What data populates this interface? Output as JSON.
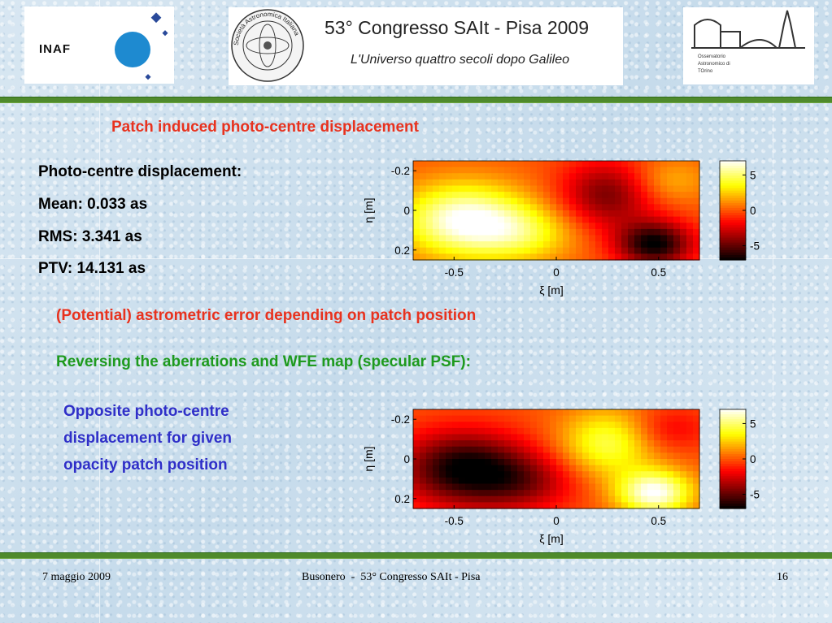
{
  "header": {
    "logos": {
      "inaf": {
        "text": "INAF"
      },
      "sait_seal": {
        "text": "Società Astronomica Italiana · 1871 Società degli Spettroscopisti"
      },
      "torino": {
        "line1": "Osservatorio",
        "line2": "Astronomico di",
        "line3": "TOrino"
      }
    },
    "congress_title": "53° Congresso SAIt - Pisa 2009",
    "congress_subtitle": "L'Universo quattro secoli dopo Galileo"
  },
  "section_title": "Patch induced photo-centre displacement",
  "stats": {
    "heading": "Photo-centre displacement:",
    "mean": "Mean: 0.033 as",
    "rms": "RMS: 3.341 as",
    "ptv": "PTV: 14.131 as"
  },
  "note_red": "(Potential) astrometric error depending on patch position",
  "note_green": "Reversing the aberrations and WFE map (specular PSF):",
  "note_blue": [
    "Opposite photo-centre",
    "displacement for given",
    "opacity patch position"
  ],
  "chart_data": [
    {
      "type": "heatmap",
      "xlabel": "ξ [m]",
      "ylabel": "η [m]",
      "x_ticks": [
        "-0.5",
        "0",
        "0.5"
      ],
      "y_ticks": [
        "-0.2",
        "0",
        "0.2"
      ],
      "xlim": [
        -0.7,
        0.7
      ],
      "ylim": [
        -0.25,
        0.25
      ],
      "colorbar_ticks": [
        "5",
        "0",
        "-5"
      ],
      "colorbar_range": [
        -7,
        7
      ],
      "colormap": "hot",
      "blobs": [
        {
          "x": -0.45,
          "y": 0.05,
          "value": 7,
          "sx": 0.22,
          "sy": 0.13
        },
        {
          "x": -0.15,
          "y": 0.12,
          "value": 3,
          "sx": 0.18,
          "sy": 0.1
        },
        {
          "x": 0.55,
          "y": -0.15,
          "value": 2,
          "sx": 0.14,
          "sy": 0.08
        },
        {
          "x": 0.25,
          "y": -0.08,
          "value": -4.5,
          "sx": 0.16,
          "sy": 0.12
        },
        {
          "x": 0.48,
          "y": 0.17,
          "value": -7,
          "sx": 0.13,
          "sy": 0.08
        }
      ]
    },
    {
      "type": "heatmap",
      "xlabel": "ξ [m]",
      "ylabel": "η [m]",
      "x_ticks": [
        "-0.5",
        "0",
        "0.5"
      ],
      "y_ticks": [
        "-0.2",
        "0",
        "0.2"
      ],
      "xlim": [
        -0.7,
        0.7
      ],
      "ylim": [
        -0.25,
        0.25
      ],
      "colorbar_ticks": [
        "5",
        "0",
        "-5"
      ],
      "colorbar_range": [
        -7,
        7
      ],
      "colormap": "hot",
      "blobs": [
        {
          "x": -0.45,
          "y": 0.05,
          "value": -7,
          "sx": 0.22,
          "sy": 0.13
        },
        {
          "x": -0.15,
          "y": 0.12,
          "value": -3,
          "sx": 0.18,
          "sy": 0.1
        },
        {
          "x": 0.55,
          "y": -0.15,
          "value": -2,
          "sx": 0.14,
          "sy": 0.08
        },
        {
          "x": 0.25,
          "y": -0.08,
          "value": 4.5,
          "sx": 0.16,
          "sy": 0.12
        },
        {
          "x": 0.48,
          "y": 0.17,
          "value": 7,
          "sx": 0.13,
          "sy": 0.08
        }
      ]
    }
  ],
  "footer": {
    "date": "7 maggio 2009",
    "center": "Busonero  -  53° Congresso SAIt - Pisa",
    "page": "16"
  }
}
